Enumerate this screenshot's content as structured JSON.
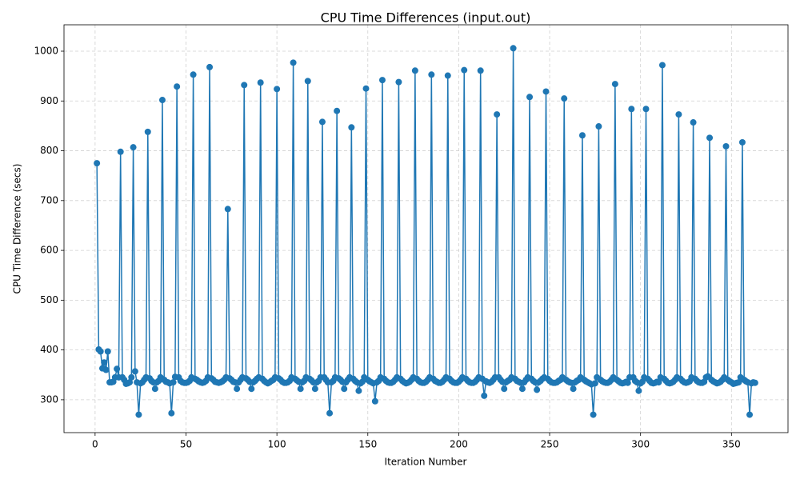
{
  "chart_data": {
    "type": "line",
    "title": "CPU Time Differences (input.out)",
    "x_label": "Iteration Number",
    "y_label": "CPU Time Difference (secs)",
    "x": [
      1,
      2,
      3,
      4,
      5,
      6,
      7,
      8,
      9,
      10,
      11,
      12,
      13,
      14,
      15,
      16,
      17,
      18,
      19,
      20,
      21,
      22,
      23,
      24,
      25,
      26,
      27,
      28,
      29,
      30,
      31,
      32,
      33,
      34,
      35,
      36,
      37,
      38,
      39,
      40,
      41,
      42,
      43,
      44,
      45,
      46,
      47,
      48,
      49,
      50,
      51,
      52,
      53,
      54,
      55,
      56,
      57,
      58,
      59,
      60,
      61,
      62,
      63,
      64,
      65,
      66,
      67,
      68,
      69,
      70,
      71,
      72,
      73,
      74,
      75,
      76,
      77,
      78,
      79,
      80,
      81,
      82,
      83,
      84,
      85,
      86,
      87,
      88,
      89,
      90,
      91,
      92,
      93,
      94,
      95,
      96,
      97,
      98,
      99,
      100,
      101,
      102,
      103,
      104,
      105,
      106,
      107,
      108,
      109,
      110,
      111,
      112,
      113,
      114,
      115,
      116,
      117,
      118,
      119,
      120,
      121,
      122,
      123,
      124,
      125,
      126,
      127,
      128,
      129,
      130,
      131,
      132,
      133,
      134,
      135,
      136,
      137,
      138,
      139,
      140,
      141,
      142,
      143,
      144,
      145,
      146,
      147,
      148,
      149,
      150,
      151,
      152,
      153,
      154,
      155,
      156,
      157,
      158,
      159,
      160,
      161,
      162,
      163,
      164,
      165,
      166,
      167,
      168,
      169,
      170,
      171,
      172,
      173,
      174,
      175,
      176,
      177,
      178,
      179,
      180,
      181,
      182,
      183,
      184,
      185,
      186,
      187,
      188,
      189,
      190,
      191,
      192,
      193,
      194,
      195,
      196,
      197,
      198,
      199,
      200,
      201,
      202,
      203,
      204,
      205,
      206,
      207,
      208,
      209,
      210,
      211,
      212,
      213,
      214,
      215,
      216,
      217,
      218,
      219,
      220,
      221,
      222,
      223,
      224,
      225,
      226,
      227,
      228,
      229,
      230,
      231,
      232,
      233,
      234,
      235,
      236,
      237,
      238,
      239,
      240,
      241,
      242,
      243,
      244,
      245,
      246,
      247,
      248,
      249,
      250,
      251,
      252,
      253,
      254,
      255,
      256,
      257,
      258,
      259,
      260,
      261,
      262,
      263,
      264,
      265,
      266,
      267,
      268,
      269,
      270,
      271,
      272,
      273,
      274,
      275,
      276,
      277,
      278,
      279,
      280,
      281,
      282,
      283,
      284,
      285,
      286,
      287,
      288,
      289,
      290,
      291,
      292,
      293,
      294,
      295,
      296,
      297,
      298,
      299,
      300,
      301,
      302,
      303,
      304,
      305,
      306,
      307,
      308,
      309,
      310,
      311,
      312,
      313,
      314,
      315,
      316,
      317,
      318,
      319,
      320,
      321,
      322,
      323,
      324,
      325,
      326,
      327,
      328,
      329,
      330,
      331,
      332,
      333,
      334,
      335,
      336,
      337,
      338,
      339,
      340,
      341,
      342,
      343,
      344,
      345,
      346,
      347,
      348,
      349,
      350,
      351,
      352,
      353,
      354,
      355,
      356,
      357,
      358,
      359,
      360,
      361,
      362,
      363
    ],
    "series": [
      {
        "color": "#1f77b4",
        "values": [
          775,
          401,
          397,
          363,
          375,
          360,
          397,
          335,
          335,
          336,
          345,
          362,
          345,
          798,
          345,
          340,
          332,
          333,
          335,
          345,
          807,
          357,
          335,
          270,
          333,
          335,
          340,
          345,
          838,
          343,
          338,
          335,
          322,
          335,
          338,
          345,
          902,
          340,
          336,
          335,
          333,
          273,
          335,
          346,
          929,
          345,
          338,
          335,
          334,
          334,
          335,
          338,
          345,
          953,
          342,
          340,
          337,
          335,
          334,
          335,
          338,
          345,
          968,
          343,
          340,
          336,
          335,
          334,
          335,
          337,
          340,
          345,
          683,
          343,
          340,
          336,
          335,
          322,
          335,
          340,
          345,
          932,
          343,
          340,
          336,
          322,
          335,
          338,
          342,
          345,
          937,
          342,
          338,
          335,
          333,
          335,
          338,
          340,
          345,
          924,
          343,
          340,
          336,
          334,
          334,
          335,
          338,
          345,
          977,
          342,
          339,
          336,
          322,
          335,
          338,
          345,
          940,
          342,
          339,
          335,
          322,
          335,
          338,
          345,
          858,
          345,
          340,
          335,
          273,
          335,
          338,
          345,
          880,
          343,
          340,
          336,
          322,
          335,
          340,
          345,
          847,
          342,
          338,
          335,
          318,
          333,
          336,
          345,
          925,
          340,
          337,
          335,
          333,
          297,
          335,
          338,
          345,
          942,
          342,
          338,
          335,
          334,
          334,
          336,
          340,
          345,
          938,
          342,
          338,
          335,
          333,
          334,
          336,
          340,
          345,
          961,
          342,
          338,
          335,
          334,
          334,
          336,
          340,
          345,
          953,
          342,
          338,
          336,
          334,
          334,
          336,
          340,
          345,
          951,
          342,
          338,
          335,
          334,
          334,
          336,
          340,
          345,
          962,
          342,
          338,
          335,
          334,
          334,
          336,
          340,
          345,
          961,
          342,
          308,
          337,
          335,
          334,
          336,
          340,
          345,
          873,
          345,
          340,
          336,
          322,
          335,
          338,
          340,
          345,
          1006,
          342,
          338,
          336,
          334,
          322,
          335,
          340,
          345,
          908,
          342,
          338,
          335,
          320,
          335,
          338,
          342,
          345,
          919,
          342,
          338,
          335,
          334,
          334,
          335,
          338,
          340,
          345,
          905,
          340,
          337,
          335,
          334,
          322,
          335,
          338,
          340,
          345,
          831,
          340,
          337,
          335,
          333,
          331,
          270,
          333,
          345,
          849,
          340,
          337,
          335,
          334,
          334,
          336,
          340,
          345,
          934,
          340,
          337,
          334,
          333,
          334,
          336,
          334,
          345,
          884,
          345,
          338,
          335,
          318,
          333,
          336,
          345,
          884,
          342,
          338,
          334,
          333,
          334,
          336,
          335,
          345,
          972,
          342,
          338,
          334,
          333,
          334,
          336,
          340,
          345,
          873,
          342,
          338,
          335,
          334,
          335,
          337,
          345,
          857,
          342,
          338,
          335,
          334,
          334,
          336,
          345,
          347,
          826,
          340,
          337,
          335,
          333,
          334,
          336,
          340,
          345,
          809,
          340,
          337,
          335,
          332,
          333,
          334,
          335,
          345,
          817,
          340,
          337,
          335,
          270,
          333,
          335,
          334
        ]
      }
    ],
    "xlim": [
      -17.1,
      381.1
    ],
    "ylim": [
      234,
      1053
    ],
    "xticks": [
      0,
      50,
      100,
      150,
      200,
      250,
      300,
      350
    ],
    "yticks": [
      300,
      400,
      500,
      600,
      700,
      800,
      900,
      1000
    ],
    "grid": true
  }
}
